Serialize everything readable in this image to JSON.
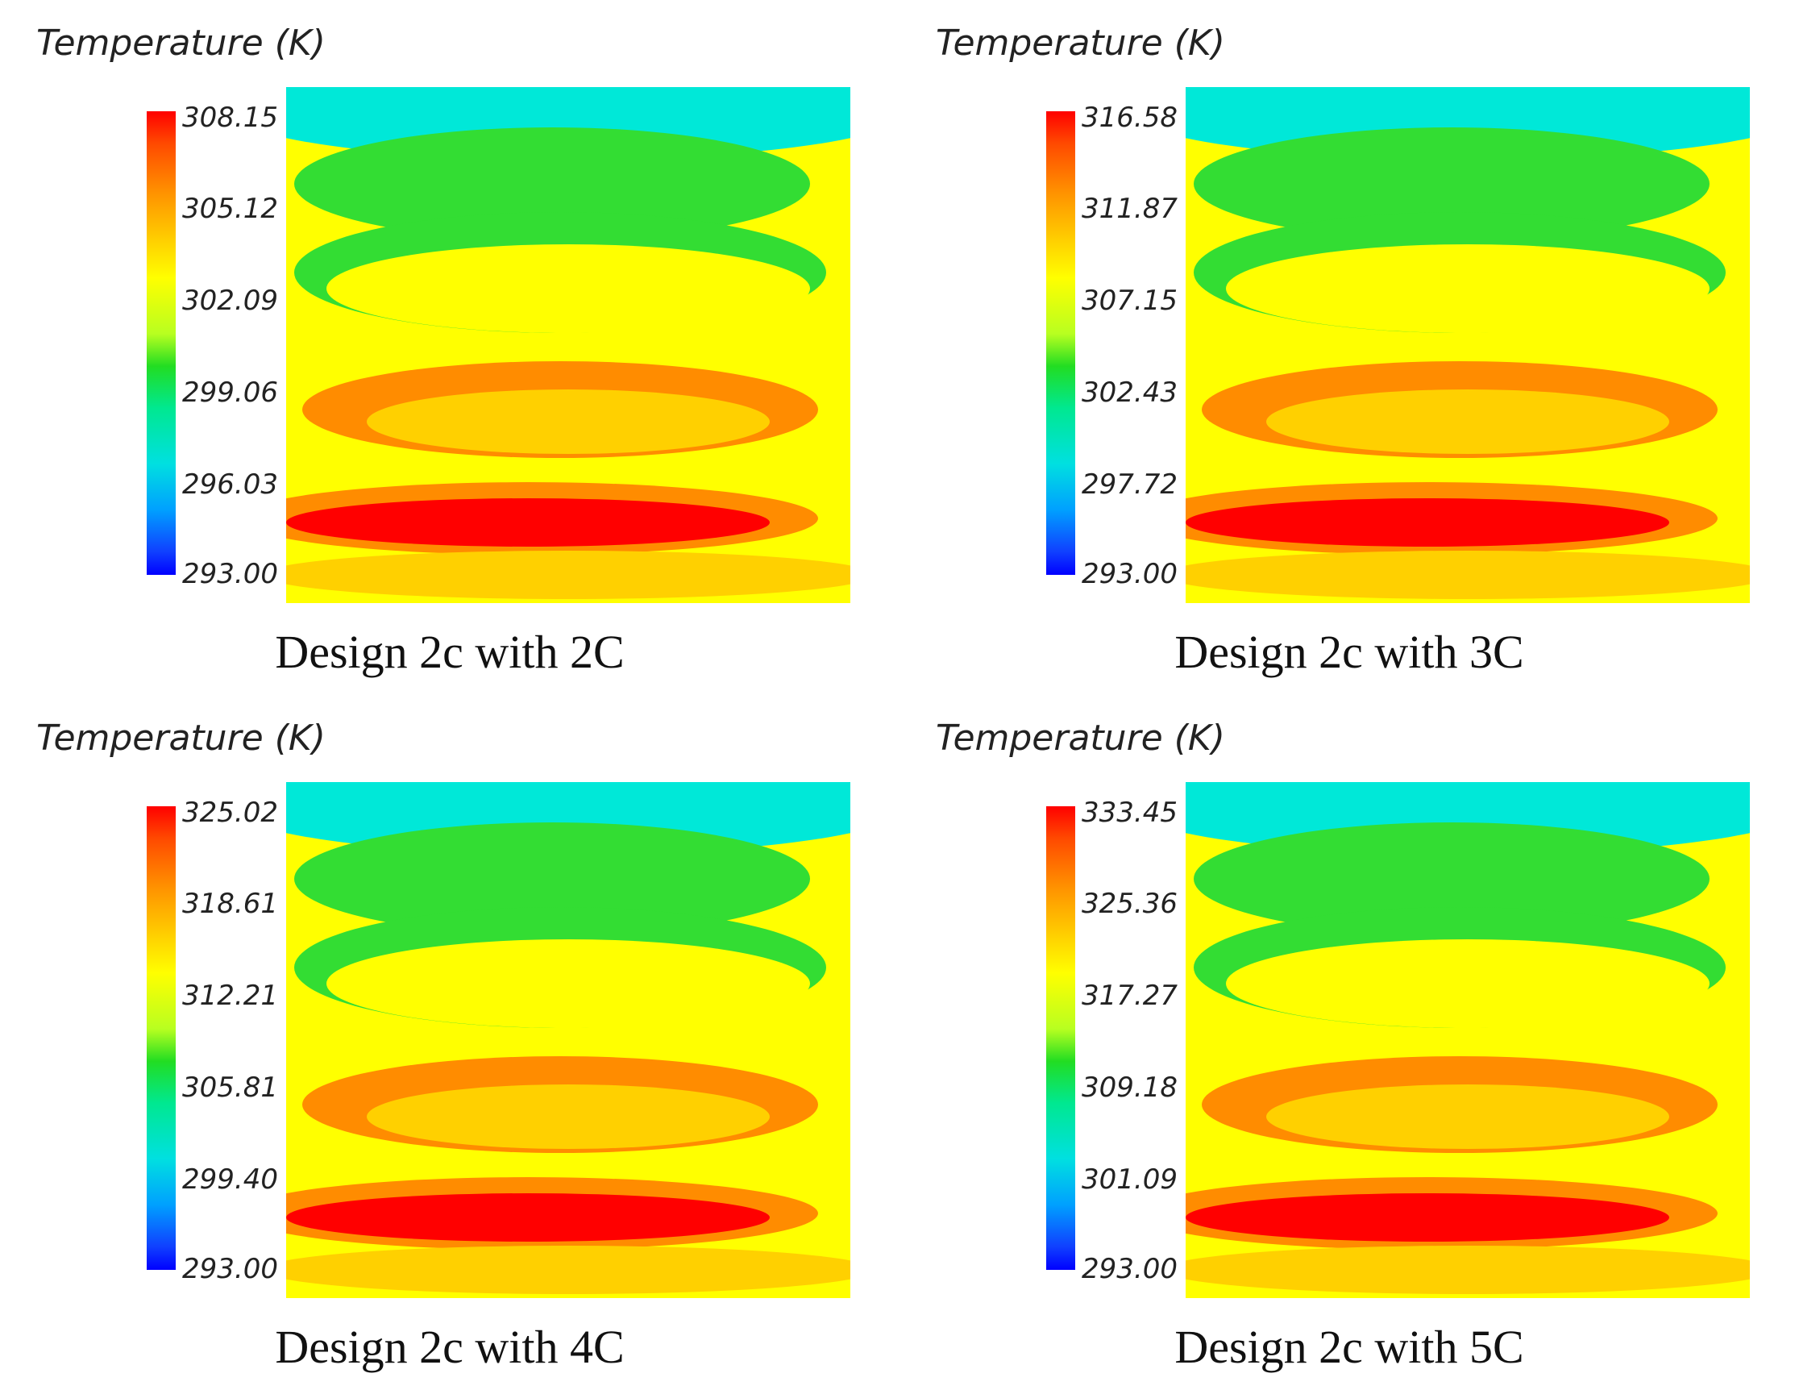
{
  "chart_data": [
    {
      "type": "heatmap",
      "title": "Design 2c with 2C",
      "legend_title": "Temperature (K)",
      "colorbar_ticks": [
        "308.15",
        "305.12",
        "302.09",
        "299.06",
        "296.03",
        "293.00"
      ],
      "range": [
        293.0,
        308.15
      ]
    },
    {
      "type": "heatmap",
      "title": "Design 2c with 3C",
      "legend_title": "Temperature (K)",
      "colorbar_ticks": [
        "316.58",
        "311.87",
        "307.15",
        "302.43",
        "297.72",
        "293.00"
      ],
      "range": [
        293.0,
        316.58
      ]
    },
    {
      "type": "heatmap",
      "title": "Design 2c with 4C",
      "legend_title": "Temperature (K)",
      "colorbar_ticks": [
        "325.02",
        "318.61",
        "312.21",
        "305.81",
        "299.40",
        "293.00"
      ],
      "range": [
        293.0,
        325.02
      ]
    },
    {
      "type": "heatmap",
      "title": "Design 2c with 5C",
      "legend_title": "Temperature (K)",
      "colorbar_ticks": [
        "333.45",
        "325.36",
        "317.27",
        "309.18",
        "301.09",
        "293.00"
      ],
      "range": [
        293.0,
        333.45
      ]
    }
  ],
  "colors": {
    "max": "#ff0000",
    "hot": "#ff8c00",
    "warm": "#ffd000",
    "mid": "#ffff00",
    "green": "#33dd33",
    "cool": "#00e8d8",
    "min": "#0000ff"
  }
}
